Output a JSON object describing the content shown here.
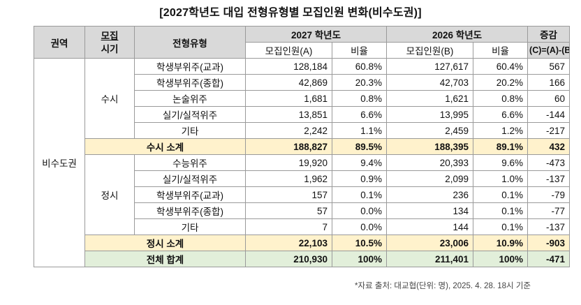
{
  "title": "[2027학년도 대입 전형유형별 모집인원 변화(비수도권)]",
  "header": {
    "region": "권역",
    "period_line1": "모집",
    "period_line2": "시기",
    "type": "전형유형",
    "y2027": "2027 학년도",
    "y2026": "2026 학년도",
    "diff_line1": "증감",
    "diff_line2": "(C)=(A)-(B)",
    "count_a": "모집인원(A)",
    "ratio": "비율",
    "count_b": "모집인원(B)"
  },
  "region_value": "비수도권",
  "susi": {
    "label": "수시",
    "rows": [
      {
        "type": "학생부위주(교과)",
        "a": "128,184",
        "ra": "60.8%",
        "b": "127,617",
        "rb": "60.4%",
        "c": "567"
      },
      {
        "type": "학생부위주(종합)",
        "a": "42,869",
        "ra": "20.3%",
        "b": "42,703",
        "rb": "20.2%",
        "c": "166"
      },
      {
        "type": "논술위주",
        "a": "1,681",
        "ra": "0.8%",
        "b": "1,621",
        "rb": "0.8%",
        "c": "60"
      },
      {
        "type": "실기/실적위주",
        "a": "13,851",
        "ra": "6.6%",
        "b": "13,995",
        "rb": "6.6%",
        "c": "-144"
      },
      {
        "type": "기타",
        "a": "2,242",
        "ra": "1.1%",
        "b": "2,459",
        "rb": "1.2%",
        "c": "-217"
      }
    ],
    "subtotal": {
      "label": "수시 소계",
      "a": "188,827",
      "ra": "89.5%",
      "b": "188,395",
      "rb": "89.1%",
      "c": "432"
    }
  },
  "jeongsi": {
    "label": "정시",
    "rows": [
      {
        "type": "수능위주",
        "a": "19,920",
        "ra": "9.4%",
        "b": "20,393",
        "rb": "9.6%",
        "c": "-473"
      },
      {
        "type": "실기/실적위주",
        "a": "1,962",
        "ra": "0.9%",
        "b": "2,099",
        "rb": "1.0%",
        "c": "-137"
      },
      {
        "type": "학생부위주(교과)",
        "a": "157",
        "ra": "0.1%",
        "b": "236",
        "rb": "0.1%",
        "c": "-79"
      },
      {
        "type": "학생부위주(종합)",
        "a": "57",
        "ra": "0.0%",
        "b": "134",
        "rb": "0.1%",
        "c": "-77"
      },
      {
        "type": "기타",
        "a": "7",
        "ra": "0.0%",
        "b": "144",
        "rb": "0.1%",
        "c": "-137"
      }
    ],
    "subtotal": {
      "label": "정시 소계",
      "a": "22,103",
      "ra": "10.5%",
      "b": "23,006",
      "rb": "10.9%",
      "c": "-903"
    }
  },
  "total": {
    "label": "전체 합계",
    "a": "210,930",
    "ra": "100%",
    "b": "211,401",
    "rb": "100%",
    "c": "-471"
  },
  "note": "*자료 출처: 대교협(단위: 명), 2025. 4. 28. 18시 기준",
  "colors": {
    "header_bg": "#d9d9d9",
    "subtotal_bg": "#fff2cc",
    "total_bg": "#e2efda",
    "border": "#9a9a9a"
  }
}
